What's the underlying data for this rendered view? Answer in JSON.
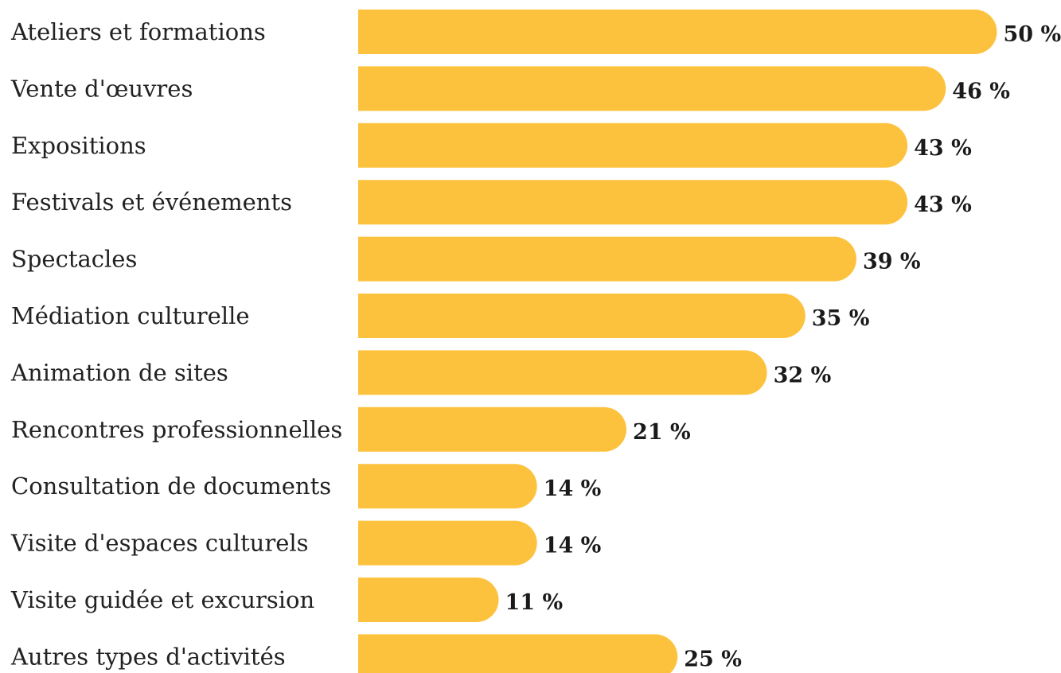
{
  "chart_data": {
    "type": "bar",
    "orientation": "horizontal",
    "categories": [
      "Ateliers et formations",
      "Vente d'œuvres",
      "Expositions",
      "Festivals et événements",
      "Spectacles",
      "Médiation culturelle",
      "Animation de sites",
      "Rencontres professionnelles",
      "Consultation de documents",
      "Visite d'espaces culturels",
      "Visite guidée et excursion",
      "Autres types d'activités"
    ],
    "values": [
      50,
      46,
      43,
      43,
      39,
      35,
      32,
      21,
      14,
      14,
      11,
      25
    ],
    "value_labels": [
      "50 %",
      "46 %",
      "43 %",
      "43 %",
      "39 %",
      "35 %",
      "32 %",
      "21 %",
      "14 %",
      "14 %",
      "11 %",
      "25 %"
    ],
    "unit": "%",
    "bar_color": "#FDC23D",
    "title": "",
    "xlabel": "",
    "ylabel": "",
    "grid": false,
    "legend": "none"
  }
}
